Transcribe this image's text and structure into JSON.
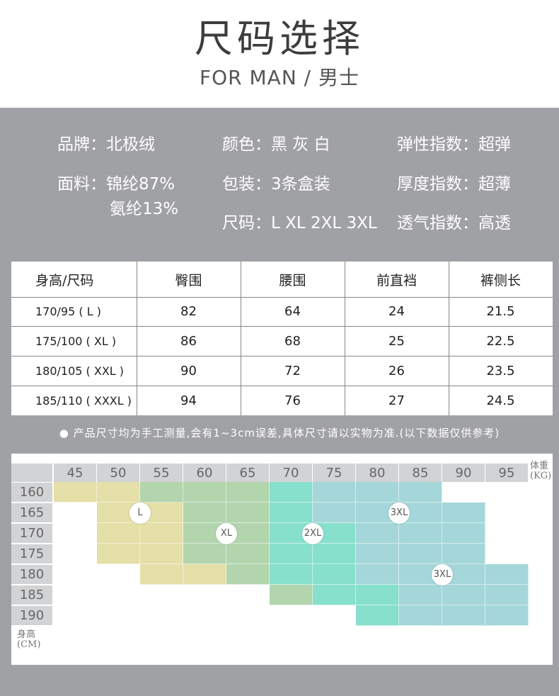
{
  "header": {
    "title": "尺码选择",
    "subtitle": "FOR MAN / 男士"
  },
  "specs": [
    {
      "label": "品牌：",
      "value": "北极绒"
    },
    {
      "label": "颜色：",
      "value": "黑 灰 白"
    },
    {
      "label": "弹性指数：",
      "value": "超弹"
    },
    {
      "label": "面料：",
      "value": "锦纶87%",
      "value2": "氨纶13%"
    },
    {
      "label": "包装：",
      "value": "3条盒装"
    },
    {
      "label": "厚度指数：",
      "value": "超薄"
    },
    {
      "label": "尺码：",
      "value": "L XL 2XL 3XL"
    },
    {
      "label": "透气指数：",
      "value": "高透"
    }
  ],
  "size_table": {
    "headers": [
      "身高/尺码",
      "臀围",
      "腰围",
      "前直裆",
      "裤侧长"
    ],
    "rows": [
      [
        "170/95 ( L )",
        "82",
        "64",
        "24",
        "21.5"
      ],
      [
        "175/100 ( XL )",
        "86",
        "68",
        "25",
        "22.5"
      ],
      [
        "180/105 ( XXL )",
        "90",
        "72",
        "26",
        "23.5"
      ],
      [
        "185/110 ( XXXL )",
        "94",
        "76",
        "27",
        "24.5"
      ]
    ]
  },
  "note": "● 产品尺寸均为手工测量,会有1~3cm误差,具体尺寸请以实物为准.(以下数据仅供参考)",
  "size_chart": {
    "weight_unit": "体重",
    "weight_unit2": "(KG)",
    "height_unit": "身高",
    "height_unit2": "(CM)",
    "weights": [
      "45",
      "50",
      "55",
      "60",
      "65",
      "70",
      "75",
      "80",
      "85",
      "90",
      "95"
    ],
    "heights": [
      "160",
      "165",
      "170",
      "175",
      "180",
      "185",
      "190"
    ],
    "colors": {
      "L": "#e5dfa8",
      "XL": "#b2d5ae",
      "2XL": "#87e0cc",
      "3XL": "#a5d7da"
    },
    "grid": [
      [
        "L",
        "L",
        "XL",
        "XL",
        "XL",
        "2XL",
        "3XL",
        "3XL",
        "3XL",
        "",
        ""
      ],
      [
        "",
        "L",
        "L",
        "XL",
        "XL",
        "2XL",
        "3XL",
        "3XL",
        "3XL",
        "3XL",
        ""
      ],
      [
        "",
        "L",
        "L",
        "XL",
        "XL",
        "2XL",
        "2XL",
        "3XL",
        "3XL",
        "3XL",
        ""
      ],
      [
        "",
        "L",
        "L",
        "XL",
        "XL",
        "2XL",
        "2XL",
        "3XL",
        "3XL",
        "3XL",
        ""
      ],
      [
        "",
        "",
        "L",
        "L",
        "XL",
        "2XL",
        "2XL",
        "3XL",
        "3XL",
        "3XL",
        "3XL"
      ],
      [
        "",
        "",
        "",
        "",
        "",
        "XL",
        "2XL",
        "2XL",
        "3XL",
        "3XL",
        "3XL"
      ],
      [
        "",
        "",
        "",
        "",
        "",
        "",
        "",
        "2XL",
        "3XL",
        "3XL",
        "3XL"
      ]
    ],
    "badges": [
      {
        "text": "L",
        "col": 2,
        "row": 1.5
      },
      {
        "text": "XL",
        "col": 4,
        "row": 2.5
      },
      {
        "text": "2XL",
        "col": 6,
        "row": 2.5
      },
      {
        "text": "3XL",
        "col": 8,
        "row": 1.5
      },
      {
        "text": "3XL",
        "col": 9,
        "row": 4.5
      }
    ]
  }
}
